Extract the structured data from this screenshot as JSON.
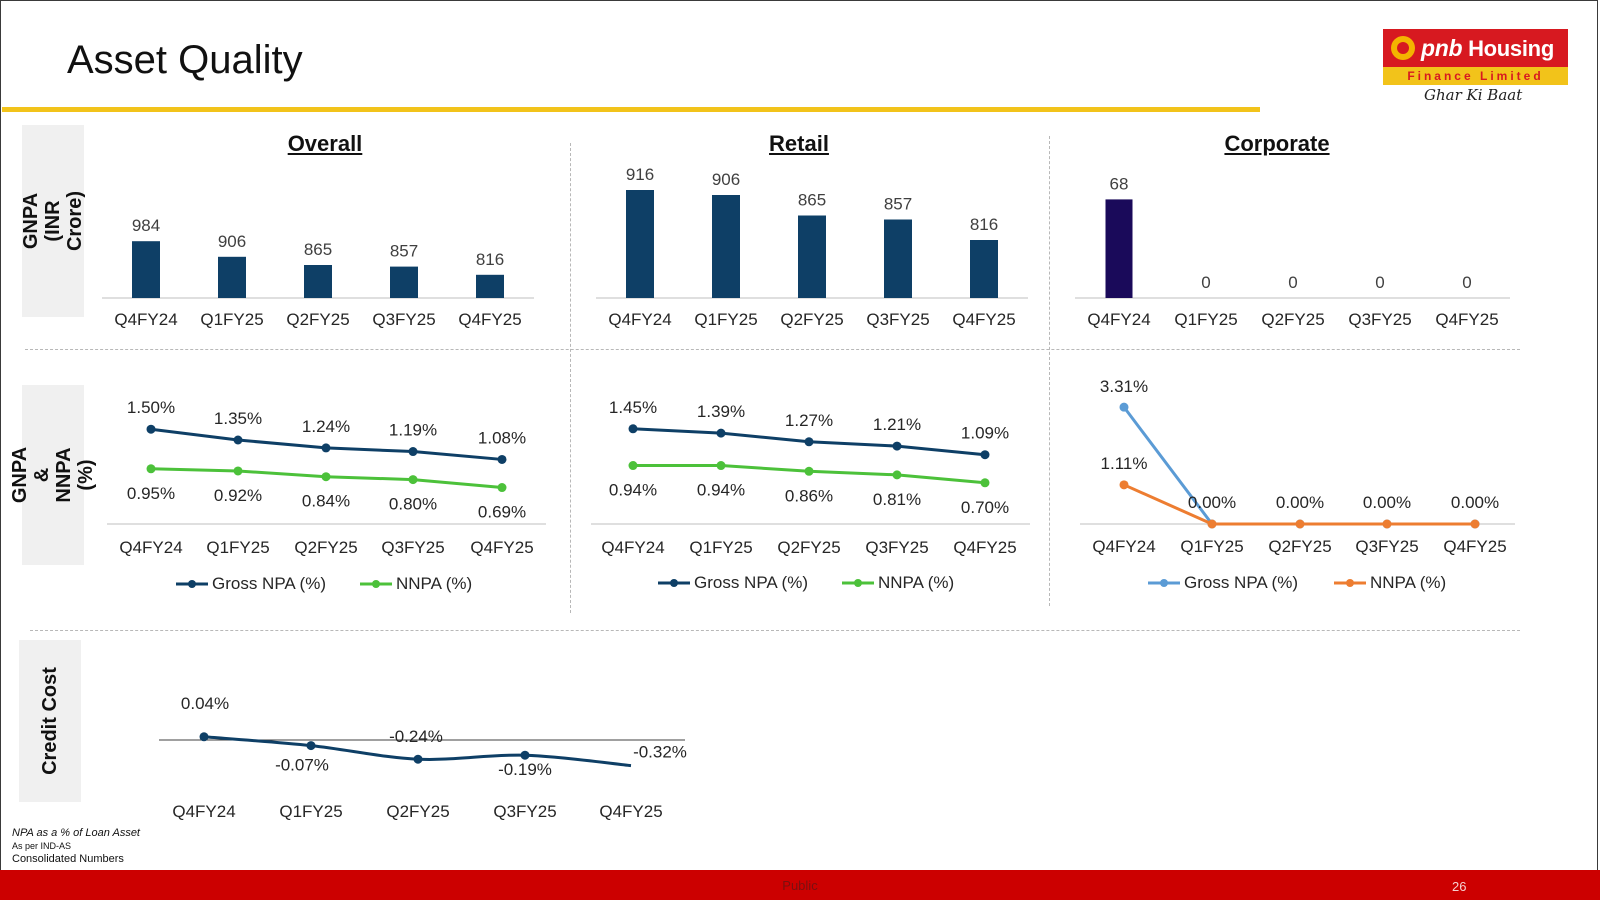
{
  "page": {
    "title": "Asset Quality",
    "logo": {
      "brand": "pnb",
      "brand_rest": "Housing",
      "sub": "Finance Limited",
      "tagline": "Ghar Ki Baat"
    },
    "row_labels": {
      "gnpa": "GNPA (INR Crore)",
      "npa_pct": "GNPA & NNPA (%)",
      "credit_cost": "Credit Cost"
    },
    "panel_titles": {
      "overall": "Overall",
      "retail": "Retail",
      "corporate": "Corporate"
    },
    "footnotes": [
      "NPA as a % of Loan Asset",
      "As per IND-AS",
      "Consolidated Numbers"
    ],
    "classification": "Public",
    "page_number": "26"
  },
  "colors": {
    "navy": "#0e3f66",
    "green": "#4cc13a",
    "lightblue": "#5b9bd5",
    "orange": "#ed7d31",
    "darknavy": "#1a0a5a",
    "accent_yellow": "#f2c31a",
    "brand_red": "#d71920"
  },
  "chart_data": [
    {
      "id": "overall_gnpa",
      "type": "bar",
      "title": "Overall",
      "categories": [
        "Q4FY24",
        "Q1FY25",
        "Q2FY25",
        "Q3FY25",
        "Q4FY25"
      ],
      "values": [
        984,
        906,
        865,
        857,
        816
      ],
      "labels": [
        "984",
        "906",
        "865",
        "857",
        "816"
      ],
      "ylabel": "GNPA (INR Crore)",
      "color": "#0e3f66"
    },
    {
      "id": "retail_gnpa",
      "type": "bar",
      "title": "Retail",
      "categories": [
        "Q4FY24",
        "Q1FY25",
        "Q2FY25",
        "Q3FY25",
        "Q4FY25"
      ],
      "values": [
        916,
        906,
        865,
        857,
        816
      ],
      "labels": [
        "916",
        "906",
        "865",
        "857",
        "816"
      ],
      "color": "#0e3f66"
    },
    {
      "id": "corporate_gnpa",
      "type": "bar",
      "title": "Corporate",
      "categories": [
        "Q4FY24",
        "Q1FY25",
        "Q2FY25",
        "Q3FY25",
        "Q4FY25"
      ],
      "values": [
        68,
        0,
        0,
        0,
        0
      ],
      "labels": [
        "68",
        "0",
        "0",
        "0",
        "0"
      ],
      "color": "#1a0a5a"
    },
    {
      "id": "overall_npa",
      "type": "line",
      "categories": [
        "Q4FY24",
        "Q1FY25",
        "Q2FY25",
        "Q3FY25",
        "Q4FY25"
      ],
      "ylabel": "GNPA & NNPA (%)",
      "series": [
        {
          "name": "Gross NPA (%)",
          "values": [
            1.5,
            1.35,
            1.24,
            1.19,
            1.08
          ],
          "labels": [
            "1.50%",
            "1.35%",
            "1.24%",
            "1.19%",
            "1.08%"
          ],
          "color": "#0e3f66"
        },
        {
          "name": "NNPA (%)",
          "values": [
            0.95,
            0.92,
            0.84,
            0.8,
            0.69
          ],
          "labels": [
            "0.95%",
            "0.92%",
            "0.84%",
            "0.80%",
            "0.69%"
          ],
          "color": "#4cc13a"
        }
      ],
      "legend": "bottom"
    },
    {
      "id": "retail_npa",
      "type": "line",
      "categories": [
        "Q4FY24",
        "Q1FY25",
        "Q2FY25",
        "Q3FY25",
        "Q4FY25"
      ],
      "series": [
        {
          "name": "Gross NPA (%)",
          "values": [
            1.45,
            1.39,
            1.27,
            1.21,
            1.09
          ],
          "labels": [
            "1.45%",
            "1.39%",
            "1.27%",
            "1.21%",
            "1.09%"
          ],
          "color": "#0e3f66"
        },
        {
          "name": "NNPA (%)",
          "values": [
            0.94,
            0.94,
            0.86,
            0.81,
            0.7
          ],
          "labels": [
            "0.94%",
            "0.94%",
            "0.86%",
            "0.81%",
            "0.70%"
          ],
          "color": "#4cc13a"
        }
      ],
      "legend": "bottom"
    },
    {
      "id": "corporate_npa",
      "type": "line",
      "categories": [
        "Q4FY24",
        "Q1FY25",
        "Q2FY25",
        "Q3FY25",
        "Q4FY25"
      ],
      "series": [
        {
          "name": "Gross NPA (%)",
          "values": [
            3.31,
            0,
            0,
            0,
            0
          ],
          "labels": [
            "3.31%",
            "0.00%",
            "0.00%",
            "0.00%",
            "0.00%"
          ],
          "color": "#5b9bd5"
        },
        {
          "name": "NNPA (%)",
          "values": [
            1.11,
            0,
            0,
            0,
            0
          ],
          "labels": [
            "1.11%",
            "",
            "",
            "",
            ""
          ],
          "color": "#ed7d31"
        }
      ],
      "legend": "bottom"
    },
    {
      "id": "credit_cost",
      "type": "line",
      "categories": [
        "Q4FY24",
        "Q1FY25",
        "Q2FY25",
        "Q3FY25",
        "Q4FY25"
      ],
      "ylabel": "Credit Cost",
      "series": [
        {
          "name": "",
          "values": [
            0.04,
            -0.07,
            -0.24,
            -0.19,
            -0.32
          ],
          "labels": [
            "0.04%",
            "-0.07%",
            "-0.24%",
            "-0.19%",
            "-0.32%"
          ],
          "color": "#0e3f66"
        }
      ]
    }
  ]
}
